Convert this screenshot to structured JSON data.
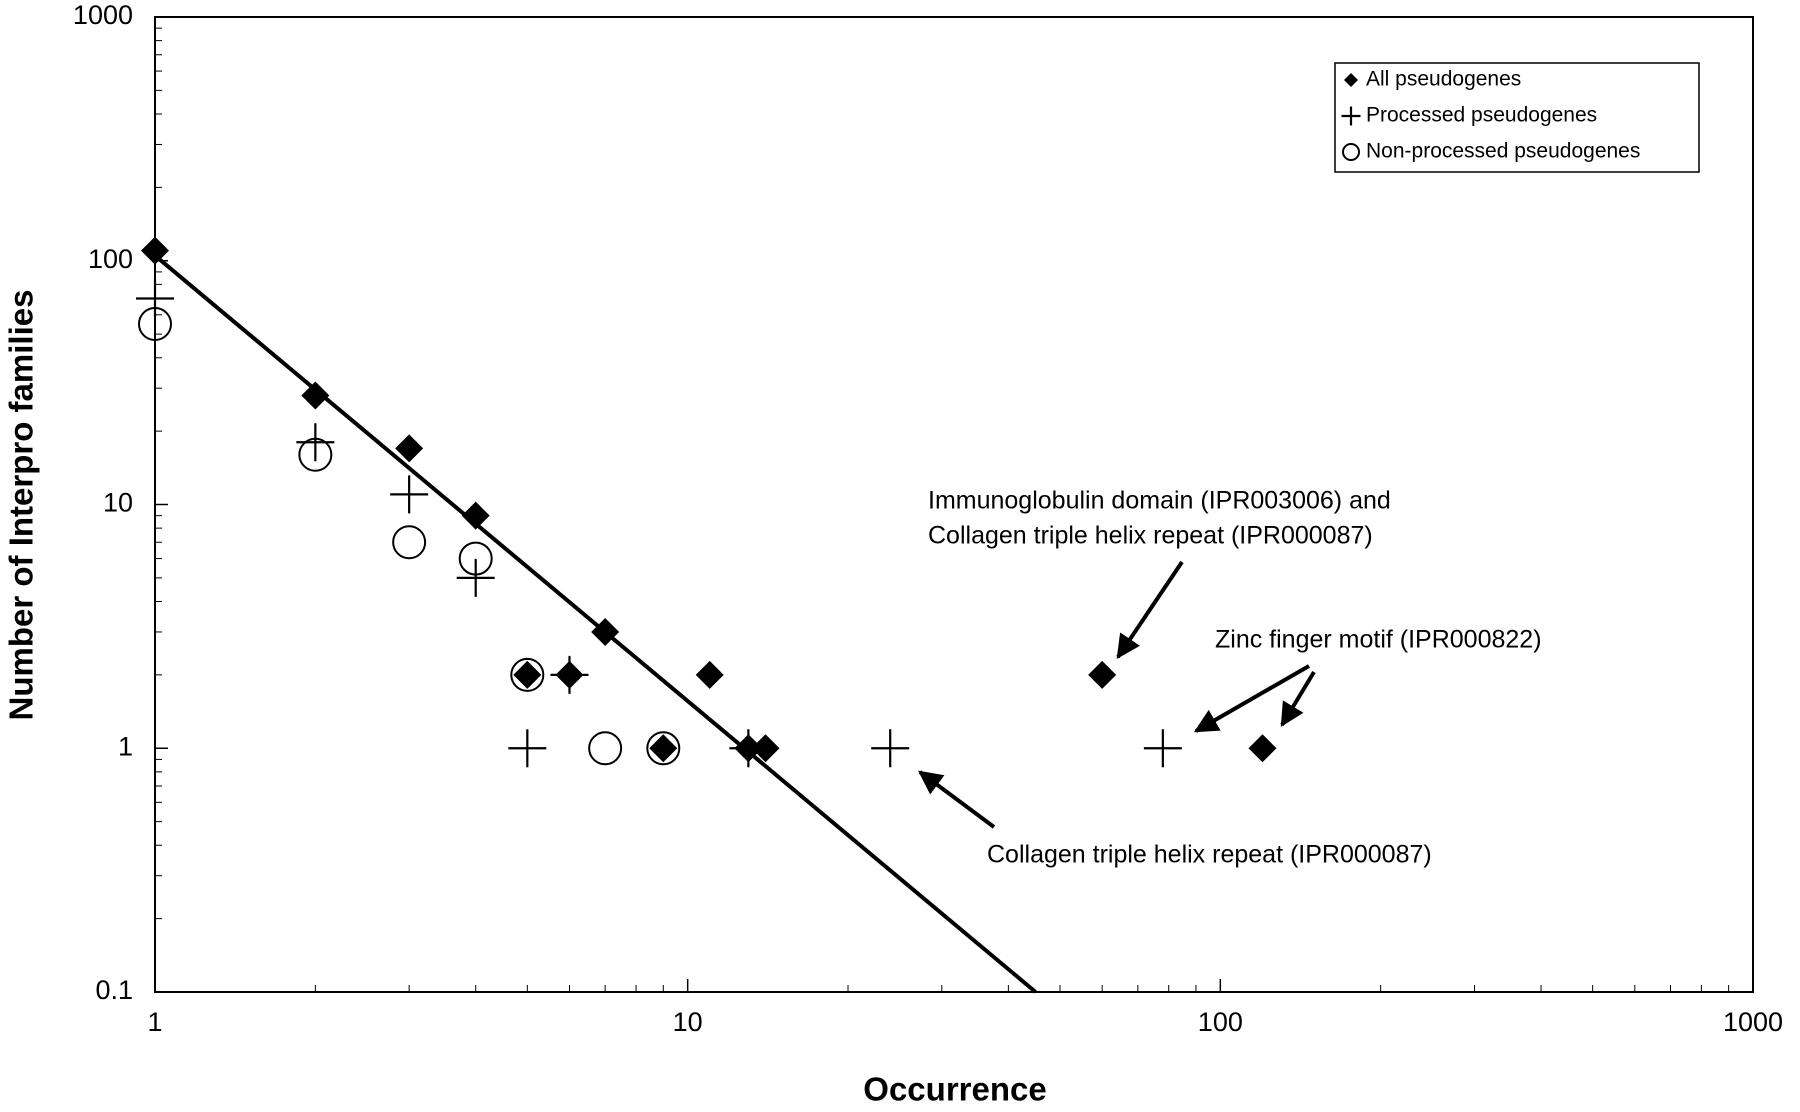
{
  "chart_data": {
    "type": "scatter",
    "x_label": "Occurrence",
    "y_label": "Number of Interpro families",
    "log_x": true,
    "log_y": true,
    "xlim": [
      1,
      1000
    ],
    "ylim": [
      0.1,
      1000
    ],
    "xticks": [
      1,
      10,
      100,
      1000
    ],
    "yticks": [
      0.1,
      1,
      10,
      100,
      1000
    ],
    "legend": "upper right",
    "series": [
      {
        "name": "All pseudogenes",
        "marker": "diamond",
        "color": "#000000",
        "x": [
          1,
          2,
          3,
          4,
          5,
          6,
          7,
          9,
          11,
          13,
          14,
          60,
          120
        ],
        "values": [
          110,
          28,
          17,
          9,
          2,
          2,
          3,
          1,
          2,
          1,
          1,
          2,
          1
        ]
      },
      {
        "name": "Processed pseudogenes",
        "marker": "plus",
        "color": "#000000",
        "x": [
          1,
          2,
          3,
          4,
          5,
          6,
          13,
          24,
          78
        ],
        "values": [
          70,
          18,
          11,
          5,
          1,
          2,
          1,
          1,
          1
        ]
      },
      {
        "name": "Non-processed pseudogenes",
        "marker": "circle",
        "color": "#000000",
        "x": [
          1,
          2,
          3,
          4,
          5,
          7,
          9
        ],
        "values": [
          55,
          16,
          7,
          6,
          2,
          1,
          1
        ]
      }
    ],
    "trend_line": {
      "x": [
        1,
        45
      ],
      "values": [
        105,
        0.1
      ],
      "color": "#000000"
    },
    "annotations": [
      "Immunoglobulin domain (IPR003006) and",
      "Collagen triple helix repeat (IPR000087)",
      "Zinc finger motif (IPR000822)",
      "Collagen triple helix repeat (IPR000087)"
    ]
  }
}
